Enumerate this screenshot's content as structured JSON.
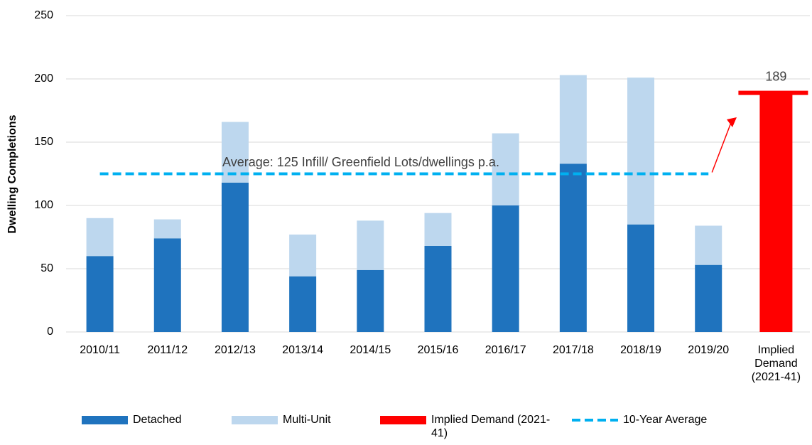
{
  "chart_data": {
    "type": "bar",
    "stacked": true,
    "y_label": "Dwelling Completions",
    "annotation": "Average: 125 Infill/ Greenfield Lots/dwellings p.a.",
    "categories": [
      "2010/11",
      "2011/12",
      "2012/13",
      "2013/14",
      "2014/15",
      "2015/16",
      "2016/17",
      "2017/18",
      "2018/19",
      "2019/20",
      "Implied Demand (2021-41)"
    ],
    "series": [
      {
        "name": "Detached",
        "color": "#1f73be",
        "type": "bar",
        "values": [
          60,
          74,
          118,
          44,
          49,
          68,
          100,
          133,
          85,
          53,
          null
        ]
      },
      {
        "name": "Multi-Unit",
        "color": "#bdd7ee",
        "type": "bar",
        "values": [
          30,
          15,
          48,
          33,
          39,
          26,
          57,
          70,
          116,
          31,
          null
        ]
      },
      {
        "name": "Implied Demand (2021-41)",
        "color": "#ff0000",
        "type": "bar",
        "values": [
          null,
          null,
          null,
          null,
          null,
          null,
          null,
          null,
          null,
          null,
          189
        ]
      },
      {
        "name": "10-Year Average",
        "color": "#00b0f0",
        "type": "line",
        "values": [
          125,
          125,
          125,
          125,
          125,
          125,
          125,
          125,
          125,
          125,
          null
        ]
      }
    ],
    "ylim": [
      0,
      250
    ],
    "yticks": [
      0,
      50,
      100,
      150,
      200,
      250
    ],
    "grid": true
  }
}
